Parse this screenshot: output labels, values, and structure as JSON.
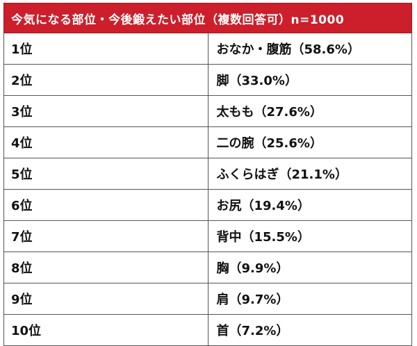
{
  "chart_data": {
    "type": "table",
    "title": "今気になる部位・今後鍛えたい部位（複数回答可）n=1000",
    "rows": [
      {
        "rank": "1位",
        "label": "おなか・腹筋（58.6%）",
        "value": 58.6
      },
      {
        "rank": "2位",
        "label": "脚（33.0%）",
        "value": 33.0
      },
      {
        "rank": "3位",
        "label": "太もも（27.6%）",
        "value": 27.6
      },
      {
        "rank": "4位",
        "label": "二の腕（25.6%）",
        "value": 25.6
      },
      {
        "rank": "5位",
        "label": "ふくらはぎ（21.1%）",
        "value": 21.1
      },
      {
        "rank": "6位",
        "label": "お尻（19.4%）",
        "value": 19.4
      },
      {
        "rank": "7位",
        "label": "背中（15.5%）",
        "value": 15.5
      },
      {
        "rank": "8位",
        "label": "胸（9.9%）",
        "value": 9.9
      },
      {
        "rank": "9位",
        "label": "肩（9.7%）",
        "value": 9.7
      },
      {
        "rank": "10位",
        "label": "首（7.2%）",
        "value": 7.2
      }
    ],
    "colors": {
      "header_bg": "#cc1f2b",
      "header_text": "#ffffff"
    }
  }
}
